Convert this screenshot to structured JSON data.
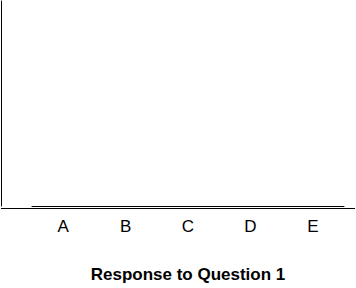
{
  "chart_data": {
    "type": "bar",
    "x_label": "Response to Question 1",
    "categories": [
      "A",
      "B",
      "C",
      "D",
      "E"
    ],
    "values": [
      null,
      null,
      null,
      null,
      null
    ],
    "color": "#000000",
    "grid": false,
    "tick_labels": "x"
  }
}
